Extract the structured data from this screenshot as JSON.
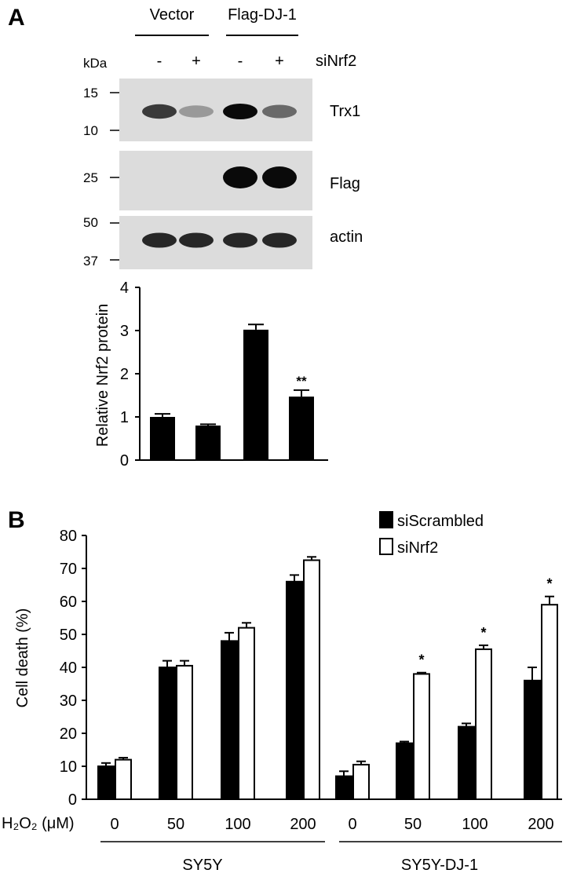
{
  "panel_a": {
    "letter": "A",
    "groups": [
      "Vector",
      "Flag-DJ-1"
    ],
    "kda_label": "kDa",
    "lanes": [
      "-",
      "+",
      "-",
      "+"
    ],
    "sirna_label": "siNrf2",
    "blots": [
      {
        "label": "Trx1",
        "markers": [
          "15",
          "10"
        ],
        "band_strength": [
          0.75,
          0.25,
          1.0,
          0.5
        ]
      },
      {
        "label": "Flag",
        "markers": [
          "25"
        ],
        "band_strength": [
          0.0,
          0.0,
          1.0,
          1.0
        ]
      },
      {
        "label": "actin",
        "markers": [
          "50",
          "37"
        ],
        "band_strength": [
          0.85,
          0.85,
          0.85,
          0.85
        ]
      }
    ]
  },
  "panel_b": {
    "letter": "B",
    "treatment_label": "H₂O₂ (μM)",
    "cell_lines": [
      "SY5Y",
      "SY5Y-DJ-1"
    ]
  },
  "colors": {
    "bar_fill": "#000000",
    "open_bar_fill": "#ffffff",
    "blot_bg": "#dcdcdc",
    "band": "#111111"
  },
  "chart_data": [
    {
      "type": "bar",
      "categories": [
        "",
        "",
        "",
        ""
      ],
      "values": [
        1.0,
        0.8,
        3.02,
        1.47
      ],
      "errors": [
        0.07,
        0.03,
        0.12,
        0.15
      ],
      "significance": [
        "",
        "",
        "",
        "**"
      ],
      "ylabel": "Relative Nrf2 protein",
      "ylim": [
        0,
        4
      ],
      "yticks": [
        0,
        1,
        2,
        3,
        4
      ],
      "grid": false
    },
    {
      "type": "bar",
      "categories": [
        "0",
        "50",
        "100",
        "200",
        "0",
        "50",
        "100",
        "200"
      ],
      "groups": [
        "SY5Y",
        "SY5Y-DJ-1"
      ],
      "series": [
        {
          "name": "siScrambled",
          "values": [
            10,
            40,
            48,
            66,
            7,
            17,
            22,
            36
          ],
          "errors": [
            1,
            2,
            2.5,
            2,
            1.5,
            0.5,
            1,
            4
          ],
          "color": "#000000"
        },
        {
          "name": "siNrf2",
          "values": [
            12,
            40.5,
            52,
            72.5,
            10.5,
            38,
            45.5,
            59
          ],
          "errors": [
            0.6,
            1.5,
            1.5,
            1,
            1,
            0.4,
            1.2,
            2.5
          ],
          "color": "#ffffff"
        }
      ],
      "significance": [
        "",
        "",
        "",
        "",
        "",
        "*",
        "*",
        "*"
      ],
      "ylabel": "Cell death (%)",
      "ylim": [
        0,
        80
      ],
      "yticks": [
        0,
        10,
        20,
        30,
        40,
        50,
        60,
        70,
        80
      ],
      "legend": "top-right",
      "grid": false
    }
  ]
}
